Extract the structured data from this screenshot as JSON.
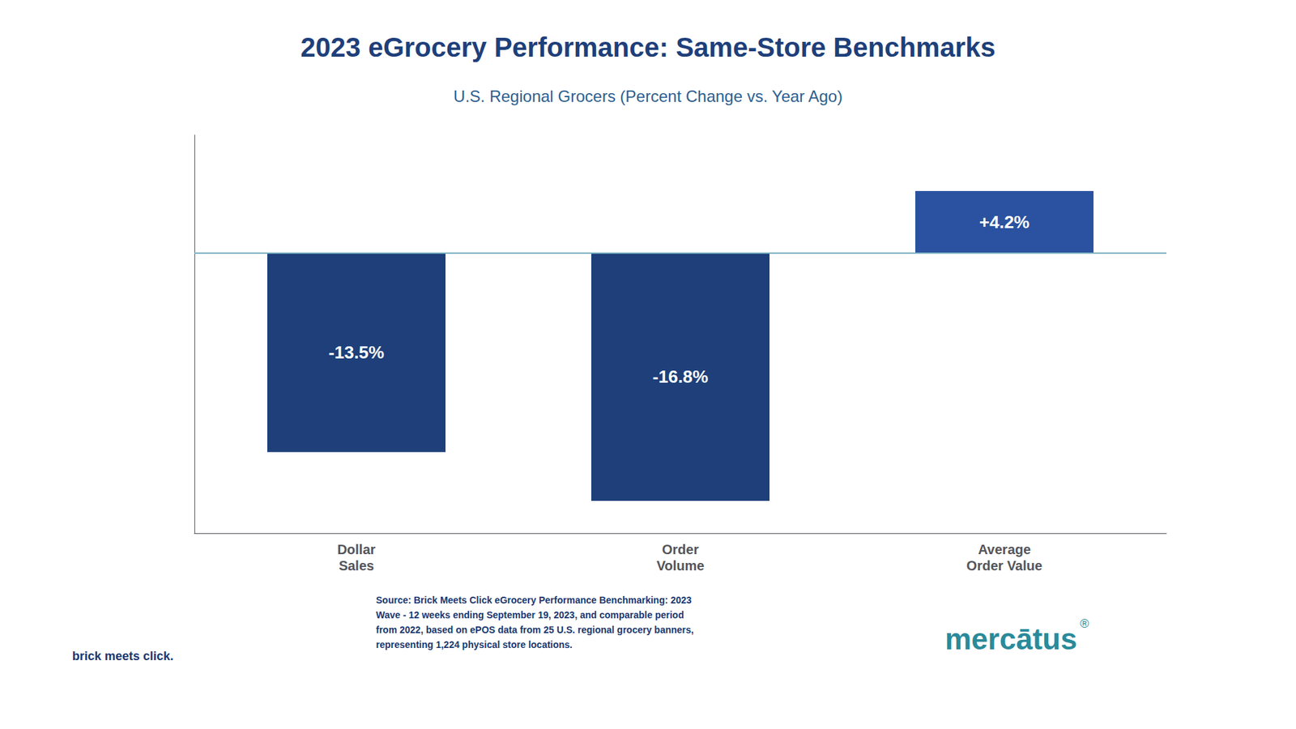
{
  "chart_data": {
    "type": "bar",
    "title": "2023 eGrocery Performance: Same-Store Benchmarks",
    "subtitle": "U.S. Regional Grocers (Percent Change vs. Year Ago)",
    "categories": [
      "Dollar\nSales",
      "Order\nVolume",
      "Average\nOrder Value"
    ],
    "values": [
      -13.5,
      -16.8,
      4.2
    ],
    "value_labels": [
      "-13.5%",
      "-16.8%",
      "+4.2%"
    ],
    "colors": [
      "#1e3f7a",
      "#1e3f7a",
      "#2a52a0"
    ],
    "data_labels": true,
    "ylim": [
      -19,
      8
    ],
    "grid": false,
    "tick_labels": "x",
    "annotations": [
      "Source: Brick Meets Click eGrocery Performance Benchmarking: 2023\nWave - 12 weeks ending September 19, 2023, and comparable period\nfrom 2022, based on ePOS data from 25 U.S. regional grocery banners,\nrepresenting 1,224 physical store locations.",
      "brick meets click.",
      "mercātus",
      "®"
    ]
  }
}
